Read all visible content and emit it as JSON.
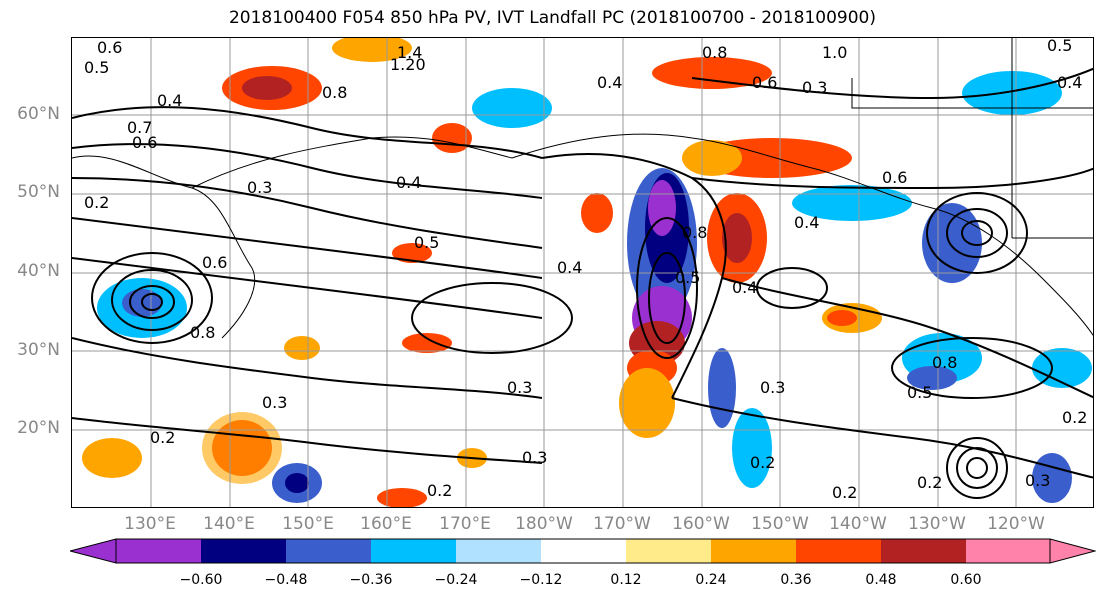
{
  "title": "2018100400 F054 850 hPa PV, IVT Landfall PC (2018100700 - 2018100900)",
  "lat_labels": [
    "60°N",
    "50°N",
    "40°N",
    "30°N",
    "20°N"
  ],
  "lon_labels": [
    "130°E",
    "140°E",
    "150°E",
    "160°E",
    "170°E",
    "180°W",
    "170°W",
    "160°W",
    "150°W",
    "140°W",
    "130°W",
    "120°W"
  ],
  "colorbar": {
    "colors": [
      "#9b30d0",
      "#000080",
      "#3a5fcd",
      "#00bfff",
      "#b0e2ff",
      "#ffffff",
      "#ffeb8a",
      "#ffa500",
      "#ff4500",
      "#b22222",
      "#ff82ab"
    ],
    "labels": [
      "−0.60",
      "−0.48",
      "−0.36",
      "−0.24",
      "−0.12",
      "0.12",
      "0.24",
      "0.36",
      "0.48",
      "0.60"
    ]
  },
  "contour_labels": [
    "0.6",
    "0.5",
    "0.4",
    "0.7",
    "0.6",
    "1.4",
    "1.20",
    "0.8",
    "1.0",
    "0.5",
    "0.4",
    "0.6",
    "0.8",
    "0.3",
    "0.4",
    "0.2",
    "0.3",
    "0.5",
    "0.4",
    "0.6",
    "0.8",
    "0.8",
    "0.5",
    "0.4",
    "0.6",
    "0.4",
    "0.4",
    "0.3",
    "0.3",
    "0.2",
    "0.3",
    "0.2",
    "0.2",
    "0.3",
    "0.8",
    "0.5",
    "0.2",
    "0.2",
    "0.2",
    "0.3"
  ]
}
